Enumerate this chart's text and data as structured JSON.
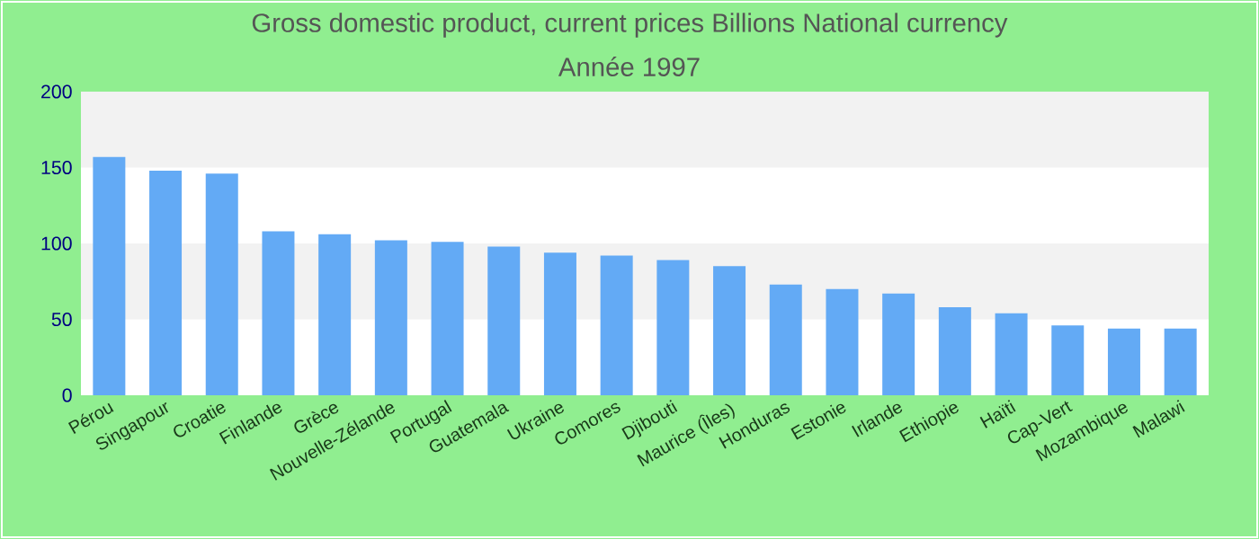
{
  "chart_data": {
    "type": "bar",
    "title": "Gross domestic product, current prices Billions National currency",
    "subtitle": "Année 1997",
    "categories": [
      "Pérou",
      "Singapour",
      "Croatie",
      "Finlande",
      "Grèce",
      "Nouvelle-Zélande",
      "Portugal",
      "Guatemala",
      "Ukraine",
      "Comores",
      "Djibouti",
      "Maurice (Îles)",
      "Honduras",
      "Estonie",
      "Irlande",
      "Ethiopie",
      "Haïti",
      "Cap-Vert",
      "Mozambique",
      "Malawi"
    ],
    "values": [
      157,
      148,
      146,
      108,
      106,
      102,
      101,
      98,
      94,
      92,
      89,
      85,
      73,
      70,
      67,
      58,
      54,
      46,
      44,
      44
    ],
    "color": "#63aaf5",
    "ylim": [
      0,
      200
    ],
    "yticks": [
      0,
      50,
      100,
      150,
      200
    ],
    "bands": [
      {
        "axis": "y",
        "from": 50,
        "to": 100,
        "color": "#f2f2f2"
      },
      {
        "axis": "y",
        "from": 150,
        "to": 200,
        "color": "#f2f2f2"
      }
    ]
  }
}
